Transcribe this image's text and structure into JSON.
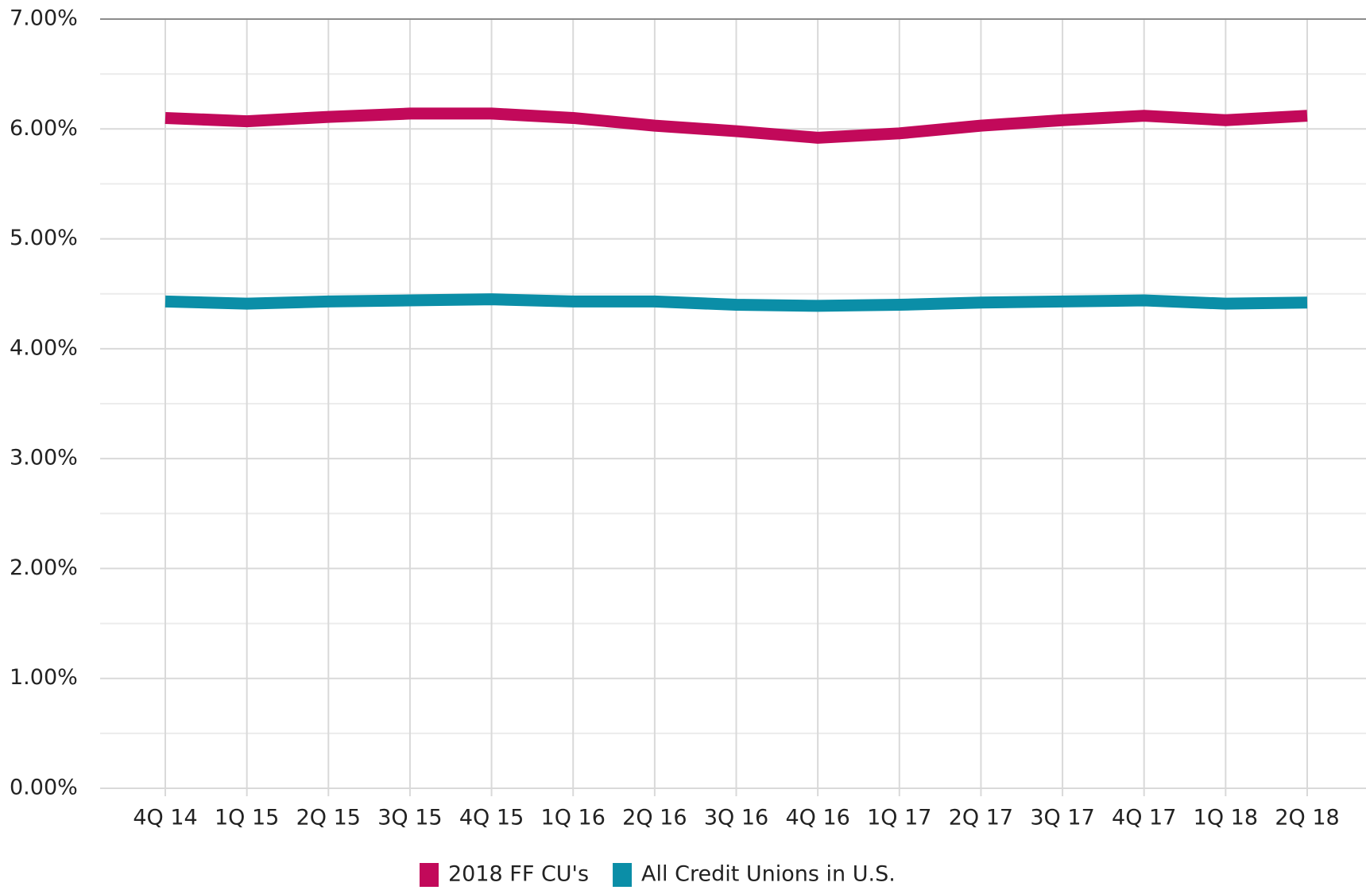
{
  "chart_data": {
    "type": "line",
    "categories": [
      "4Q 14",
      "1Q 15",
      "2Q 15",
      "3Q 15",
      "4Q 15",
      "1Q 16",
      "2Q 16",
      "3Q 16",
      "4Q 16",
      "1Q 17",
      "2Q 17",
      "3Q 17",
      "4Q 17",
      "1Q 18",
      "2Q 18"
    ],
    "series": [
      {
        "name": "2018 FF CU's",
        "color": "#c2095a",
        "values": [
          6.1,
          6.07,
          6.11,
          6.14,
          6.14,
          6.1,
          6.03,
          5.98,
          5.92,
          5.96,
          6.03,
          6.08,
          6.12,
          6.08,
          6.12
        ]
      },
      {
        "name": "All Credit Unions in U.S.",
        "color": "#0b8ea7",
        "values": [
          4.43,
          4.41,
          4.43,
          4.44,
          4.45,
          4.43,
          4.43,
          4.4,
          4.39,
          4.4,
          4.42,
          4.43,
          4.44,
          4.41,
          4.42
        ]
      }
    ],
    "ylim": [
      0,
      7
    ],
    "yticks": [
      {
        "value": 0,
        "label": "0.00%"
      },
      {
        "value": 1,
        "label": "1.00%"
      },
      {
        "value": 2,
        "label": "2.00%"
      },
      {
        "value": 3,
        "label": "3.00%"
      },
      {
        "value": 4,
        "label": "4.00%"
      },
      {
        "value": 5,
        "label": "5.00%"
      },
      {
        "value": 6,
        "label": "6.00%"
      },
      {
        "value": 7,
        "label": "7.00%"
      }
    ],
    "minor_yticks": [
      0.5,
      1.5,
      2.5,
      3.5,
      4.5,
      5.5,
      6.5
    ],
    "grid": true,
    "legend": "bottom"
  }
}
